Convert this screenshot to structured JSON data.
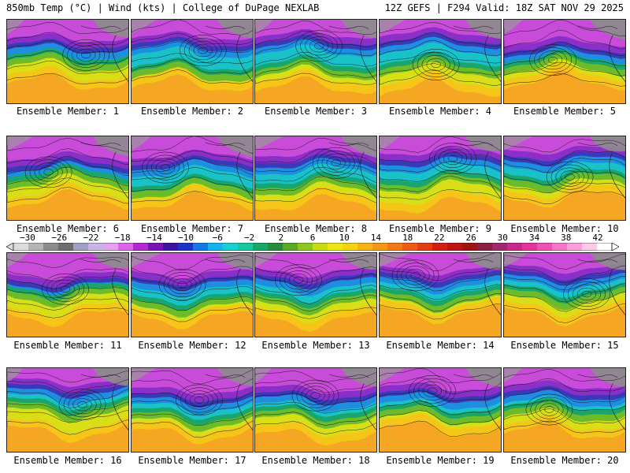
{
  "header": {
    "left": "850mb Temp (°C) | Wind (kts) | College of DuPage NEXLAB",
    "right": "12Z GEFS | F294 Valid: 18Z SAT NOV 29 2025"
  },
  "colorbar": {
    "labels": [
      "−30",
      "−26",
      "−22",
      "−18",
      "−14",
      "−10",
      "−6",
      "−2",
      "2",
      "6",
      "10",
      "14",
      "18",
      "22",
      "26",
      "30",
      "34",
      "38",
      "42"
    ],
    "colors": [
      "#dcdcdc",
      "#b4b4b4",
      "#8c8c8c",
      "#6e6e6e",
      "#a0a0c8",
      "#c8b4e6",
      "#e6a0f0",
      "#dc64e6",
      "#b428d2",
      "#7814b4",
      "#3c14a0",
      "#1e32c8",
      "#1478e6",
      "#14b4f0",
      "#14d2d2",
      "#14c8a0",
      "#14aa64",
      "#288c3c",
      "#5aaa28",
      "#8cc81e",
      "#c8dc14",
      "#f0e614",
      "#f5d214",
      "#f5b414",
      "#f59614",
      "#f57814",
      "#f05a14",
      "#e63c14",
      "#d21e14",
      "#be1414",
      "#a01414",
      "#8c1e46",
      "#a0286e",
      "#c8288c",
      "#e6329b",
      "#f050b4",
      "#f578c8",
      "#faa0dc",
      "#fcc8ec",
      "#ffffff"
    ]
  },
  "panels": [
    {
      "label": "Ensemble Member: 1"
    },
    {
      "label": "Ensemble Member: 2"
    },
    {
      "label": "Ensemble Member: 3"
    },
    {
      "label": "Ensemble Member: 4"
    },
    {
      "label": "Ensemble Member: 5"
    },
    {
      "label": "Ensemble Member: 6"
    },
    {
      "label": "Ensemble Member: 7"
    },
    {
      "label": "Ensemble Member: 8"
    },
    {
      "label": "Ensemble Member: 9"
    },
    {
      "label": "Ensemble Member: 10"
    },
    {
      "label": "Ensemble Member: 11"
    },
    {
      "label": "Ensemble Member: 12"
    },
    {
      "label": "Ensemble Member: 13"
    },
    {
      "label": "Ensemble Member: 14"
    },
    {
      "label": "Ensemble Member: 15"
    },
    {
      "label": "Ensemble Member: 16"
    },
    {
      "label": "Ensemble Member: 17"
    },
    {
      "label": "Ensemble Member: 18"
    },
    {
      "label": "Ensemble Member: 19"
    },
    {
      "label": "Ensemble Member: 20"
    }
  ]
}
